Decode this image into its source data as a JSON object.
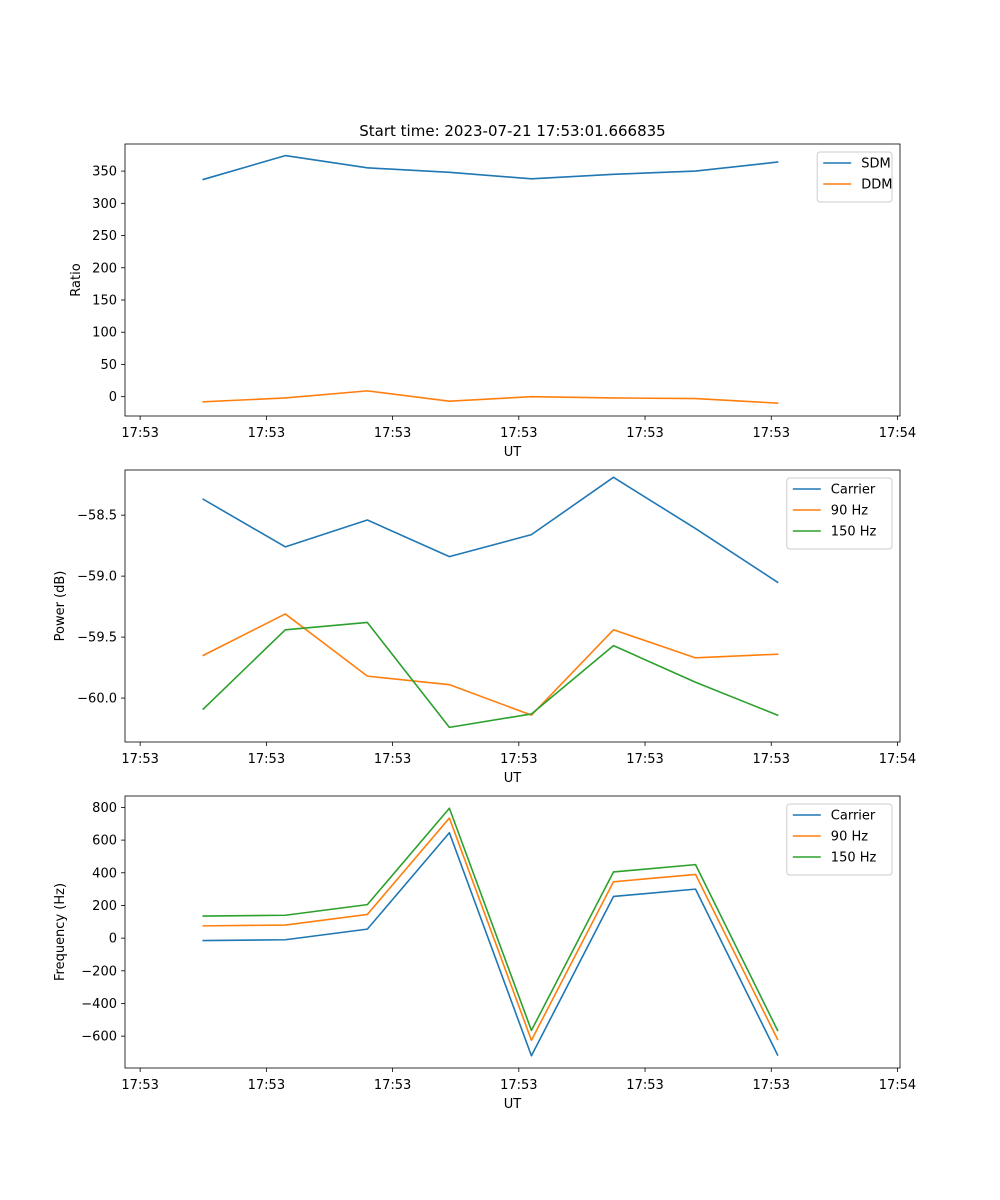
{
  "figure_title": "Start time: 2023-07-21 17:53:01.666835",
  "chart_data": [
    {
      "type": "line",
      "title": "Start time: 2023-07-21 17:53:01.666835",
      "xlabel": "UT",
      "ylabel": "Ratio",
      "x_tick_labels": [
        "17:53",
        "17:53",
        "17:53",
        "17:53",
        "17:53",
        "17:53",
        "17:54"
      ],
      "x_tick_positions": [
        0,
        1,
        2,
        3,
        4,
        5,
        6
      ],
      "x": [
        0.5,
        1.15,
        1.8,
        2.45,
        3.1,
        3.75,
        4.4,
        5.05
      ],
      "xlim": [
        -0.12,
        6.02
      ],
      "ylim": [
        -30,
        392
      ],
      "y_ticks": [
        0,
        50,
        100,
        150,
        200,
        250,
        300,
        350
      ],
      "legend_position": "upper right",
      "series": [
        {
          "name": "SDM",
          "color": "#1f77b4",
          "values": [
            337,
            374,
            355,
            348,
            338,
            345,
            350,
            364
          ]
        },
        {
          "name": "DDM",
          "color": "#ff7f0e",
          "values": [
            -8,
            -2,
            9,
            -7,
            0,
            -2,
            -3,
            -10
          ]
        }
      ]
    },
    {
      "type": "line",
      "title": "",
      "xlabel": "UT",
      "ylabel": "Power (dB)",
      "x_tick_labels": [
        "17:53",
        "17:53",
        "17:53",
        "17:53",
        "17:53",
        "17:53",
        "17:54"
      ],
      "x_tick_positions": [
        0,
        1,
        2,
        3,
        4,
        5,
        6
      ],
      "x": [
        0.5,
        1.15,
        1.8,
        2.45,
        3.1,
        3.75,
        4.4,
        5.05
      ],
      "xlim": [
        -0.12,
        6.02
      ],
      "ylim": [
        -60.36,
        -58.13
      ],
      "y_ticks": [
        -60.0,
        -59.5,
        -59.0,
        -58.5
      ],
      "y_tick_labels": [
        "−60.0",
        "−59.5",
        "−59.0",
        "−58.5"
      ],
      "legend_position": "upper right",
      "series": [
        {
          "name": "Carrier",
          "color": "#1f77b4",
          "values": [
            -58.37,
            -58.76,
            -58.54,
            -58.84,
            -58.66,
            -58.19,
            -58.61,
            -59.05
          ]
        },
        {
          "name": "90 Hz",
          "color": "#ff7f0e",
          "values": [
            -59.65,
            -59.31,
            -59.82,
            -59.89,
            -60.14,
            -59.44,
            -59.67,
            -59.64
          ]
        },
        {
          "name": "150 Hz",
          "color": "#2ca02c",
          "values": [
            -60.09,
            -59.44,
            -59.38,
            -60.24,
            -60.13,
            -59.57,
            -59.87,
            -60.14
          ]
        }
      ]
    },
    {
      "type": "line",
      "title": "",
      "xlabel": "UT",
      "ylabel": "Frequency (Hz)",
      "x_tick_labels": [
        "17:53",
        "17:53",
        "17:53",
        "17:53",
        "17:53",
        "17:53",
        "17:54"
      ],
      "x_tick_positions": [
        0,
        1,
        2,
        3,
        4,
        5,
        6
      ],
      "x": [
        0.5,
        1.15,
        1.8,
        2.45,
        3.1,
        3.75,
        4.4,
        5.05
      ],
      "xlim": [
        -0.12,
        6.02
      ],
      "ylim": [
        -795,
        870
      ],
      "y_ticks": [
        -600,
        -400,
        -200,
        0,
        200,
        400,
        600,
        800
      ],
      "y_tick_labels": [
        "−600",
        "−400",
        "−200",
        "0",
        "200",
        "400",
        "600",
        "800"
      ],
      "legend_position": "upper right",
      "series": [
        {
          "name": "Carrier",
          "color": "#1f77b4",
          "values": [
            -15,
            -10,
            55,
            645,
            -720,
            255,
            300,
            -715
          ]
        },
        {
          "name": "90 Hz",
          "color": "#ff7f0e",
          "values": [
            75,
            80,
            145,
            735,
            -625,
            345,
            390,
            -620
          ]
        },
        {
          "name": "150 Hz",
          "color": "#2ca02c",
          "values": [
            135,
            140,
            205,
            795,
            -565,
            405,
            450,
            -565
          ]
        }
      ]
    }
  ]
}
